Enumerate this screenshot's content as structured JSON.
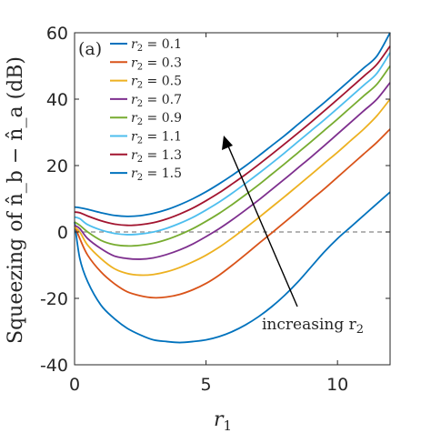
{
  "chart_data": {
    "type": "line",
    "panel_label": "(a)",
    "xlabel": "r",
    "xlabel_sub": "1",
    "ylabel": "Squeezing of n̂_b − n̂_a (dB)",
    "xlim": [
      0,
      12
    ],
    "ylim": [
      -40,
      60
    ],
    "xticks": [
      0,
      5,
      10
    ],
    "yticks": [
      -40,
      -20,
      0,
      20,
      40,
      60
    ],
    "reference_line": {
      "y": 0,
      "style": "dashed",
      "color": "#888888"
    },
    "annotation": {
      "text": "increasing r",
      "sub": "2"
    },
    "legend_location": "top-left",
    "grid": false,
    "series": [
      {
        "name": "r₂ = 0.1",
        "r2": "0.1",
        "color": "#0072BD",
        "points": [
          [
            0,
            3
          ],
          [
            0.2,
            -8
          ],
          [
            0.5,
            -15
          ],
          [
            1,
            -22
          ],
          [
            1.5,
            -26
          ],
          [
            2,
            -29
          ],
          [
            2.5,
            -31
          ],
          [
            3,
            -32.5
          ],
          [
            3.5,
            -33
          ],
          [
            4,
            -33.3
          ],
          [
            4.5,
            -33
          ],
          [
            5,
            -32.5
          ],
          [
            5.5,
            -31.5
          ],
          [
            6,
            -30
          ],
          [
            6.5,
            -28
          ],
          [
            7,
            -25.5
          ],
          [
            7.5,
            -22.5
          ],
          [
            8,
            -19
          ],
          [
            8.5,
            -15
          ],
          [
            9,
            -10.5
          ],
          [
            9.5,
            -6
          ],
          [
            10,
            -2
          ],
          [
            10.5,
            1.5
          ],
          [
            11,
            5
          ],
          [
            11.5,
            8.5
          ],
          [
            12,
            12
          ]
        ]
      },
      {
        "name": "r₂ = 0.3",
        "r2": "0.3",
        "color": "#D95319",
        "points": [
          [
            0,
            2
          ],
          [
            0.2,
            -2
          ],
          [
            0.5,
            -7
          ],
          [
            1,
            -12
          ],
          [
            1.5,
            -15.5
          ],
          [
            2,
            -18
          ],
          [
            2.5,
            -19.2
          ],
          [
            3,
            -19.8
          ],
          [
            3.5,
            -19.6
          ],
          [
            4,
            -18.8
          ],
          [
            4.5,
            -17.4
          ],
          [
            5,
            -15.5
          ],
          [
            5.5,
            -13
          ],
          [
            6,
            -10
          ],
          [
            6.5,
            -6.8
          ],
          [
            7,
            -3.5
          ],
          [
            7.5,
            -0.3
          ],
          [
            8,
            3
          ],
          [
            8.5,
            6.3
          ],
          [
            9,
            9.7
          ],
          [
            9.5,
            13
          ],
          [
            10,
            16.5
          ],
          [
            10.5,
            20
          ],
          [
            11,
            23.5
          ],
          [
            11.5,
            27
          ],
          [
            12,
            31
          ]
        ]
      },
      {
        "name": "r₂ = 0.5",
        "r2": "0.5",
        "color": "#EDB120",
        "points": [
          [
            0,
            1.5
          ],
          [
            0.2,
            0
          ],
          [
            0.5,
            -4
          ],
          [
            1,
            -8
          ],
          [
            1.5,
            -11
          ],
          [
            2,
            -12.5
          ],
          [
            2.5,
            -13
          ],
          [
            3,
            -12.8
          ],
          [
            3.5,
            -12
          ],
          [
            4,
            -10.7
          ],
          [
            4.5,
            -9
          ],
          [
            5,
            -7
          ],
          [
            5.5,
            -4.6
          ],
          [
            6,
            -1.8
          ],
          [
            6.5,
            1.2
          ],
          [
            7,
            4.3
          ],
          [
            7.5,
            7.5
          ],
          [
            8,
            10.7
          ],
          [
            8.5,
            14
          ],
          [
            9,
            17.3
          ],
          [
            9.5,
            20.7
          ],
          [
            10,
            24
          ],
          [
            10.5,
            27.5
          ],
          [
            11,
            31
          ],
          [
            11.5,
            35
          ],
          [
            12,
            40
          ]
        ]
      },
      {
        "name": "r₂ = 0.7",
        "r2": "0.7",
        "color": "#7E2F8E",
        "points": [
          [
            0,
            2
          ],
          [
            0.2,
            1
          ],
          [
            0.5,
            -2
          ],
          [
            1,
            -5
          ],
          [
            1.5,
            -7.2
          ],
          [
            2,
            -8
          ],
          [
            2.5,
            -8.2
          ],
          [
            3,
            -7.8
          ],
          [
            3.5,
            -6.8
          ],
          [
            4,
            -5.4
          ],
          [
            4.5,
            -3.6
          ],
          [
            5,
            -1.4
          ],
          [
            5.5,
            1
          ],
          [
            6,
            3.7
          ],
          [
            6.5,
            6.6
          ],
          [
            7,
            9.6
          ],
          [
            7.5,
            12.8
          ],
          [
            8,
            16
          ],
          [
            8.5,
            19.3
          ],
          [
            9,
            22.6
          ],
          [
            9.5,
            26
          ],
          [
            10,
            29.5
          ],
          [
            10.5,
            33
          ],
          [
            11,
            36.5
          ],
          [
            11.5,
            40
          ],
          [
            12,
            45
          ]
        ]
      },
      {
        "name": "r₂ = 0.9",
        "r2": "0.9",
        "color": "#77AC30",
        "points": [
          [
            0,
            3
          ],
          [
            0.2,
            2
          ],
          [
            0.5,
            0
          ],
          [
            1,
            -2.5
          ],
          [
            1.5,
            -3.8
          ],
          [
            2,
            -4.2
          ],
          [
            2.5,
            -4
          ],
          [
            3,
            -3.4
          ],
          [
            3.5,
            -2.3
          ],
          [
            4,
            -0.8
          ],
          [
            4.5,
            1
          ],
          [
            5,
            3.2
          ],
          [
            5.5,
            5.6
          ],
          [
            6,
            8.3
          ],
          [
            6.5,
            11.2
          ],
          [
            7,
            14.2
          ],
          [
            7.5,
            17.4
          ],
          [
            8,
            20.6
          ],
          [
            8.5,
            23.9
          ],
          [
            9,
            27.2
          ],
          [
            9.5,
            30.6
          ],
          [
            10,
            34
          ],
          [
            10.5,
            37.5
          ],
          [
            11,
            41
          ],
          [
            11.5,
            44.5
          ],
          [
            12,
            50
          ]
        ]
      },
      {
        "name": "r₂ = 1.1",
        "r2": "1.1",
        "color": "#4DBEEE",
        "points": [
          [
            0,
            4.5
          ],
          [
            0.2,
            4
          ],
          [
            0.5,
            2.2
          ],
          [
            1,
            0.6
          ],
          [
            1.5,
            -0.4
          ],
          [
            2,
            -0.8
          ],
          [
            2.5,
            -0.6
          ],
          [
            3,
            0
          ],
          [
            3.5,
            1.1
          ],
          [
            4,
            2.6
          ],
          [
            4.5,
            4.4
          ],
          [
            5,
            6.6
          ],
          [
            5.5,
            9
          ],
          [
            6,
            11.7
          ],
          [
            6.5,
            14.6
          ],
          [
            7,
            17.6
          ],
          [
            7.5,
            20.7
          ],
          [
            8,
            23.9
          ],
          [
            8.5,
            27.2
          ],
          [
            9,
            30.5
          ],
          [
            9.5,
            33.8
          ],
          [
            10,
            37.2
          ],
          [
            10.5,
            40.7
          ],
          [
            11,
            44.2
          ],
          [
            11.5,
            47.8
          ],
          [
            12,
            54
          ]
        ]
      },
      {
        "name": "r₂ = 1.3",
        "r2": "1.3",
        "color": "#A2142F",
        "points": [
          [
            0,
            6
          ],
          [
            0.2,
            5.8
          ],
          [
            0.5,
            4.8
          ],
          [
            1,
            3.4
          ],
          [
            1.5,
            2.4
          ],
          [
            2,
            2
          ],
          [
            2.5,
            2.2
          ],
          [
            3,
            2.8
          ],
          [
            3.5,
            3.9
          ],
          [
            4,
            5.4
          ],
          [
            4.5,
            7.2
          ],
          [
            5,
            9.4
          ],
          [
            5.5,
            11.8
          ],
          [
            6,
            14.5
          ],
          [
            6.5,
            17.3
          ],
          [
            7,
            20.3
          ],
          [
            7.5,
            23.4
          ],
          [
            8,
            26.6
          ],
          [
            8.5,
            29.8
          ],
          [
            9,
            33.1
          ],
          [
            9.5,
            36.5
          ],
          [
            10,
            39.9
          ],
          [
            10.5,
            43.4
          ],
          [
            11,
            46.9
          ],
          [
            11.5,
            50.5
          ],
          [
            12,
            56
          ]
        ]
      },
      {
        "name": "r₂ = 1.5",
        "r2": "1.5",
        "color": "#0072BD",
        "points": [
          [
            0,
            7.5
          ],
          [
            0.2,
            7.3
          ],
          [
            0.5,
            6.8
          ],
          [
            1,
            5.8
          ],
          [
            1.5,
            5
          ],
          [
            2,
            4.7
          ],
          [
            2.5,
            4.9
          ],
          [
            3,
            5.6
          ],
          [
            3.5,
            6.7
          ],
          [
            4,
            8.2
          ],
          [
            4.5,
            10
          ],
          [
            5,
            12.1
          ],
          [
            5.5,
            14.5
          ],
          [
            6,
            17.1
          ],
          [
            6.5,
            19.9
          ],
          [
            7,
            22.9
          ],
          [
            7.5,
            26
          ],
          [
            8,
            29.1
          ],
          [
            8.5,
            32.4
          ],
          [
            9,
            35.7
          ],
          [
            9.5,
            39
          ],
          [
            10,
            42.4
          ],
          [
            10.5,
            45.9
          ],
          [
            11,
            49.4
          ],
          [
            11.5,
            53
          ],
          [
            12,
            60
          ]
        ]
      }
    ]
  }
}
